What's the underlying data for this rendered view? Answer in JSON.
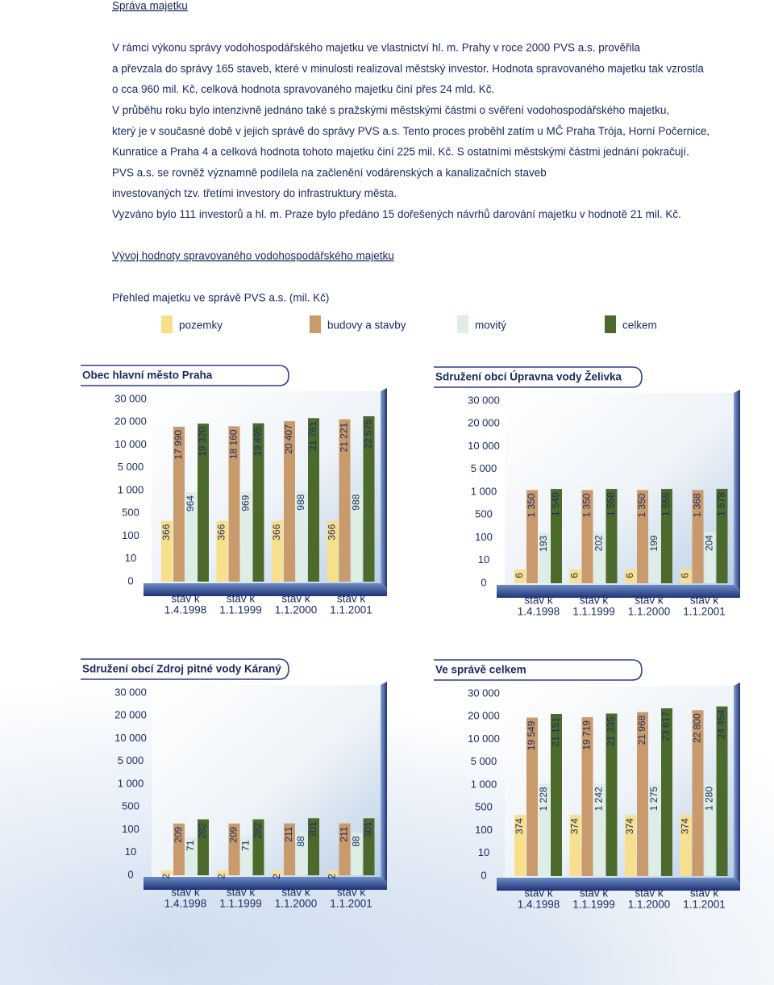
{
  "heading": "Správa majetku",
  "paragraph_lines": [
    "V rámci výkonu správy vodohospodářského majetku ve vlastnictví hl. m. Prahy v roce 2000 PVS a.s. prověřila",
    "a převzala do správy 165 staveb, které v minulosti realizoval městský investor. Hodnota spravovaného majetku tak vzrostla",
    "o cca 960 mil. Kč, celková hodnota spravovaného majetku činí přes 24 mld. Kč.",
    "V průběhu roku bylo intenzivně jednáno také s pražskými městskými částmi o svěření vodohospodářského majetku,",
    "který je v současné době v jejich správě do správy PVS a.s. Tento proces proběhl zatím u MČ Praha Trója, Horní Počernice,",
    "Kunratice a Praha 4 a celková hodnota tohoto majetku činí 225 mil. Kč. S ostatními městskými částmi jednání pokračují.",
    "PVS a.s. se rovněž významně podílela na začlenění vodárenských a kanalizačních staveb",
    "investovaných tzv. třetími investory do infrastruktury města.",
    "Vyzváno bylo 111 investorů a hl. m. Praze bylo předáno 15 dořešených návrhů darování majetku v hodnotě  21 mil. Kč."
  ],
  "section_title": "Vývoj hodnoty spravovaného vodohospodářského majetku",
  "chart_caption": "Přehled majetku ve správě PVS a.s. (mil. Kč)",
  "legend": [
    {
      "name": "pozemky",
      "color": "#f8df8c"
    },
    {
      "name": "budovy a stavby",
      "color": "#c99a6b"
    },
    {
      "name": "movitý",
      "color": "#deeee6"
    },
    {
      "name": "celkem",
      "color": "#4d6a2d"
    }
  ],
  "chart_data": [
    {
      "type": "bar",
      "title": "Obec hlavní město Praha",
      "categories": [
        [
          "stav k",
          "1.4.1998"
        ],
        [
          "stav k",
          "1.1.1999"
        ],
        [
          "stav k",
          "1.1.2000"
        ],
        [
          "stav k",
          "1.1.2001"
        ]
      ],
      "ylim": [
        0,
        30000
      ],
      "yticks": [
        0,
        10,
        100,
        500,
        {
          "value": 1000,
          "label": "1 000"
        },
        {
          "value": 5000,
          "label": "5 000"
        },
        {
          "value": 10000,
          "label": "10 000"
        },
        {
          "value": 20000,
          "label": "20 000"
        },
        {
          "value": 30000,
          "label": "30 000"
        }
      ],
      "series": [
        {
          "values": [
            366,
            366,
            366,
            366
          ]
        },
        {
          "values": [
            17990,
            18160,
            20407,
            21221
          ],
          "value_labels": [
            "17 990",
            "18 160",
            "20 407",
            "21 221"
          ]
        },
        {
          "values": [
            964,
            969,
            988,
            988
          ]
        },
        {
          "values": [
            19320,
            19495,
            21761,
            22575
          ],
          "value_labels": [
            "19 320",
            "19 495",
            "21 761",
            "22 575"
          ]
        }
      ]
    },
    {
      "type": "bar",
      "title": "Sdružení obcí Úpravna vody Želivka",
      "categories": [
        [
          "stav k",
          "1.4.1998"
        ],
        [
          "stav k",
          "1.1.1999"
        ],
        [
          "stav k",
          "1.1.2000"
        ],
        [
          "stav k",
          "1.1.2001"
        ]
      ],
      "ylim": [
        0,
        30000
      ],
      "yticks": [
        0,
        10,
        100,
        500,
        {
          "value": 1000,
          "label": "1 000"
        },
        {
          "value": 5000,
          "label": "5 000"
        },
        {
          "value": 10000,
          "label": "10 000"
        },
        {
          "value": 20000,
          "label": "20 000"
        },
        {
          "value": 30000,
          "label": "30 000"
        }
      ],
      "series": [
        {
          "values": [
            6,
            6,
            6,
            6
          ]
        },
        {
          "values": [
            1350,
            1350,
            1350,
            1368
          ],
          "value_labels": [
            "1 350",
            "1 350",
            "1 350",
            "1 368"
          ]
        },
        {
          "values": [
            193,
            202,
            199,
            204
          ]
        },
        {
          "values": [
            1549,
            1558,
            1555,
            1578
          ],
          "value_labels": [
            "1 549",
            "1 558",
            "1 555",
            "1 578"
          ]
        }
      ]
    },
    {
      "type": "bar",
      "title": "Sdružení obcí Zdroj pitné vody Káraný",
      "categories": [
        [
          "stav k",
          "1.4.1998"
        ],
        [
          "stav k",
          "1.1.1999"
        ],
        [
          "stav k",
          "1.1.2000"
        ],
        [
          "stav k",
          "1.1.2001"
        ]
      ],
      "ylim": [
        0,
        30000
      ],
      "yticks": [
        0,
        10,
        100,
        500,
        {
          "value": 1000,
          "label": "1 000"
        },
        {
          "value": 5000,
          "label": "5 000"
        },
        {
          "value": 10000,
          "label": "10 000"
        },
        {
          "value": 20000,
          "label": "20 000"
        },
        {
          "value": 30000,
          "label": "30 000"
        }
      ],
      "series": [
        {
          "values": [
            2,
            2,
            2,
            2
          ]
        },
        {
          "values": [
            209,
            209,
            211,
            211
          ]
        },
        {
          "values": [
            71,
            71,
            88,
            88
          ]
        },
        {
          "values": [
            282,
            282,
            301,
            301
          ]
        }
      ]
    },
    {
      "type": "bar",
      "title": "Ve správě celkem",
      "categories": [
        [
          "stav k",
          "1.4.1998"
        ],
        [
          "stav k",
          "1.1.1999"
        ],
        [
          "stav k",
          "1.1.2000"
        ],
        [
          "stav k",
          "1.1.2001"
        ]
      ],
      "ylim": [
        0,
        30000
      ],
      "yticks": [
        0,
        10,
        100,
        500,
        {
          "value": 1000,
          "label": "1 000"
        },
        {
          "value": 5000,
          "label": "5 000"
        },
        {
          "value": 10000,
          "label": "10 000"
        },
        {
          "value": 20000,
          "label": "20 000"
        },
        {
          "value": 30000,
          "label": "30 000"
        }
      ],
      "series": [
        {
          "values": [
            374,
            374,
            374,
            374
          ]
        },
        {
          "values": [
            19549,
            19719,
            21968,
            22800
          ],
          "value_labels": [
            "19 549",
            "19 719",
            "21 968",
            "22 800"
          ]
        },
        {
          "values": [
            1228,
            1242,
            1275,
            1280
          ],
          "value_labels": [
            "1 228",
            "1 242",
            "1 275",
            "1 280"
          ]
        },
        {
          "values": [
            21151,
            21335,
            23617,
            24454
          ],
          "value_labels": [
            "21 151",
            "21 335",
            "23 617",
            "24 454"
          ]
        }
      ]
    }
  ]
}
